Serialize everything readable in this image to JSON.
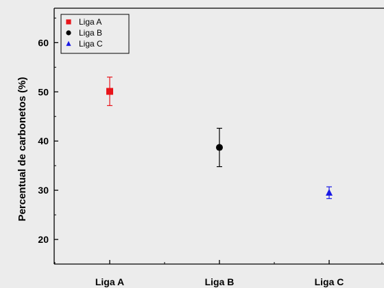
{
  "chart_data": {
    "type": "scatter",
    "title": "",
    "xlabel": "",
    "ylabel": "Percentual de carbonetos (%)",
    "categories": [
      "Liga A",
      "Liga B",
      "Liga C"
    ],
    "ylim": [
      15,
      67
    ],
    "yticks": [
      20,
      30,
      40,
      50,
      60
    ],
    "grid": false,
    "legend_position": "top-left",
    "series": [
      {
        "name": "Liga A",
        "category": "Liga A",
        "y": 50.1,
        "err_low": 47.2,
        "err_high": 53.0,
        "marker": "square",
        "color": "#e8141a"
      },
      {
        "name": "Liga B",
        "category": "Liga B",
        "y": 38.7,
        "err_low": 34.8,
        "err_high": 42.6,
        "marker": "circle",
        "color": "#000000"
      },
      {
        "name": "Liga C",
        "category": "Liga C",
        "y": 29.5,
        "err_low": 28.3,
        "err_high": 30.7,
        "marker": "triangle",
        "color": "#1a1ae6"
      }
    ]
  }
}
